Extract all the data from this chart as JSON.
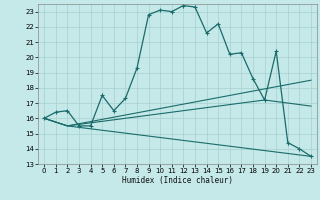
{
  "title": "",
  "xlabel": "Humidex (Indice chaleur)",
  "bg_color": "#c5e8e8",
  "grid_color": "#a8d0d0",
  "line_color": "#1a6b6b",
  "xlim": [
    -0.5,
    23.5
  ],
  "ylim": [
    13,
    23.5
  ],
  "yticks": [
    13,
    14,
    15,
    16,
    17,
    18,
    19,
    20,
    21,
    22,
    23
  ],
  "xticks": [
    0,
    1,
    2,
    3,
    4,
    5,
    6,
    7,
    8,
    9,
    10,
    11,
    12,
    13,
    14,
    15,
    16,
    17,
    18,
    19,
    20,
    21,
    22,
    23
  ],
  "main_curve": {
    "x": [
      0,
      1,
      2,
      3,
      4,
      5,
      6,
      7,
      8,
      9,
      10,
      11,
      12,
      13,
      14,
      15,
      16,
      17,
      18,
      19,
      20,
      21,
      22,
      23
    ],
    "y": [
      16.0,
      16.4,
      16.5,
      15.5,
      15.5,
      17.5,
      16.5,
      17.3,
      19.3,
      22.8,
      23.1,
      23.0,
      23.4,
      23.3,
      21.6,
      22.2,
      20.2,
      20.3,
      18.6,
      17.2,
      20.4,
      14.4,
      14.0,
      13.5
    ]
  },
  "fan_lines": [
    {
      "x": [
        0,
        2,
        23
      ],
      "y": [
        16.0,
        15.5,
        18.5
      ]
    },
    {
      "x": [
        0,
        2,
        19,
        23
      ],
      "y": [
        16.0,
        15.5,
        17.2,
        16.8
      ]
    },
    {
      "x": [
        0,
        2,
        23
      ],
      "y": [
        16.0,
        15.5,
        13.5
      ]
    }
  ]
}
